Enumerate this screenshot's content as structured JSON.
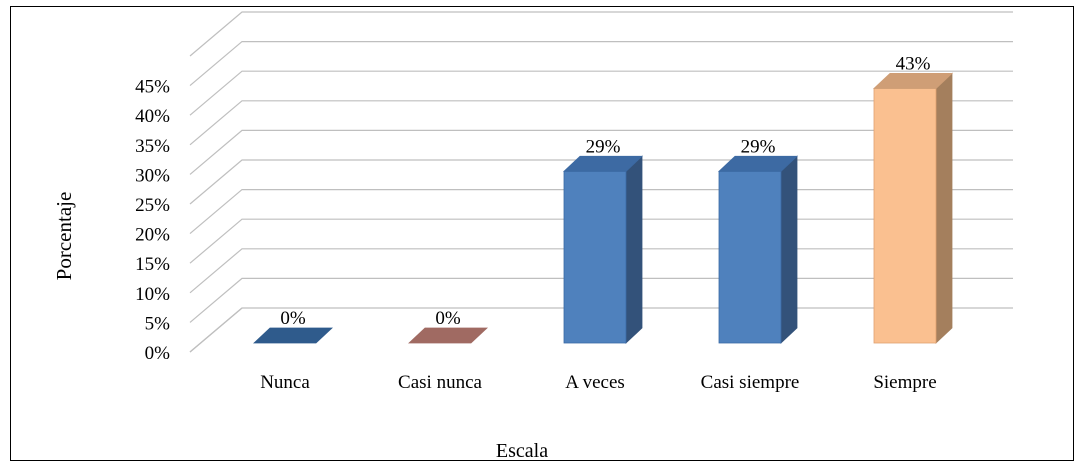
{
  "chart_data": {
    "type": "bar",
    "categories": [
      "Nunca",
      "Casi nunca",
      "A veces",
      "Casi siempre",
      "Siempre"
    ],
    "values": [
      0,
      0,
      29,
      29,
      43
    ],
    "data_labels": [
      "0%",
      "0%",
      "29%",
      "29%",
      "43%"
    ],
    "xlabel": "Escala",
    "ylabel": "Porcentaje",
    "ylim": [
      0,
      45
    ],
    "yticks": [
      "0%",
      "5%",
      "10%",
      "15%",
      "20%",
      "25%",
      "30%",
      "35%",
      "40%",
      "45%"
    ],
    "grid": true,
    "legend": "none",
    "three_d": true,
    "colors": {
      "front": [
        "#2f5b8c",
        "#a06a62",
        "#4f81bd",
        "#4f81bd",
        "#fac090"
      ],
      "side": [
        "#2f5b8c",
        "#a06a62",
        "#33527a",
        "#33527a",
        "#a47f5d"
      ],
      "top": [
        "#2f5b8c",
        "#a06a62",
        "#3d6aa3",
        "#3d6aa3",
        "#cf9e76"
      ]
    }
  }
}
